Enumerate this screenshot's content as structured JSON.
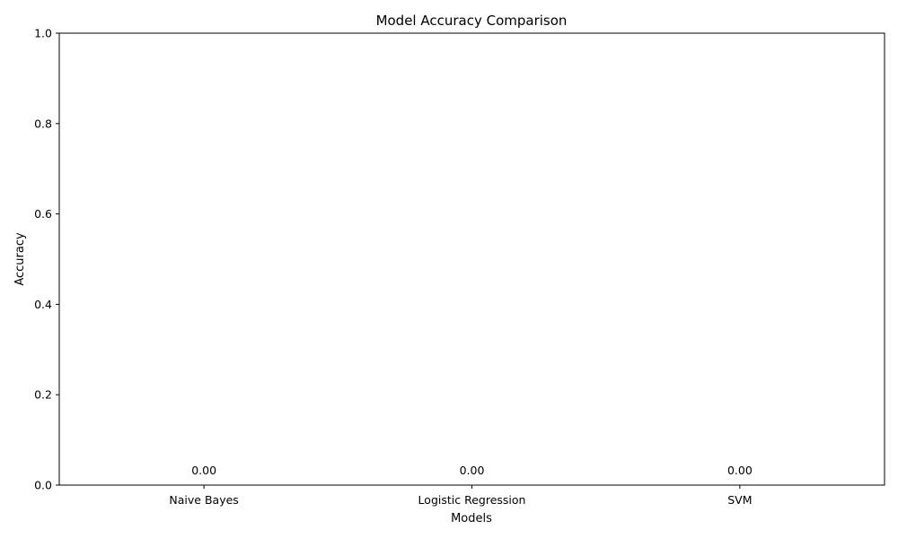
{
  "chart_data": {
    "type": "bar",
    "title": "Model Accuracy Comparison",
    "xlabel": "Models",
    "ylabel": "Accuracy",
    "categories": [
      "Naive Bayes",
      "Logistic Regression",
      "SVM"
    ],
    "values": [
      0.0,
      0.0,
      0.0
    ],
    "data_labels": [
      "0.00",
      "0.00",
      "0.00"
    ],
    "ylim": [
      0,
      1
    ],
    "yticks": [
      0.0,
      0.2,
      0.4,
      0.6,
      0.8,
      1.0
    ],
    "ytick_labels": [
      "0.0",
      "0.2",
      "0.4",
      "0.6",
      "0.8",
      "1.0"
    ],
    "grid": false,
    "bar_color": "#1f77b4"
  }
}
